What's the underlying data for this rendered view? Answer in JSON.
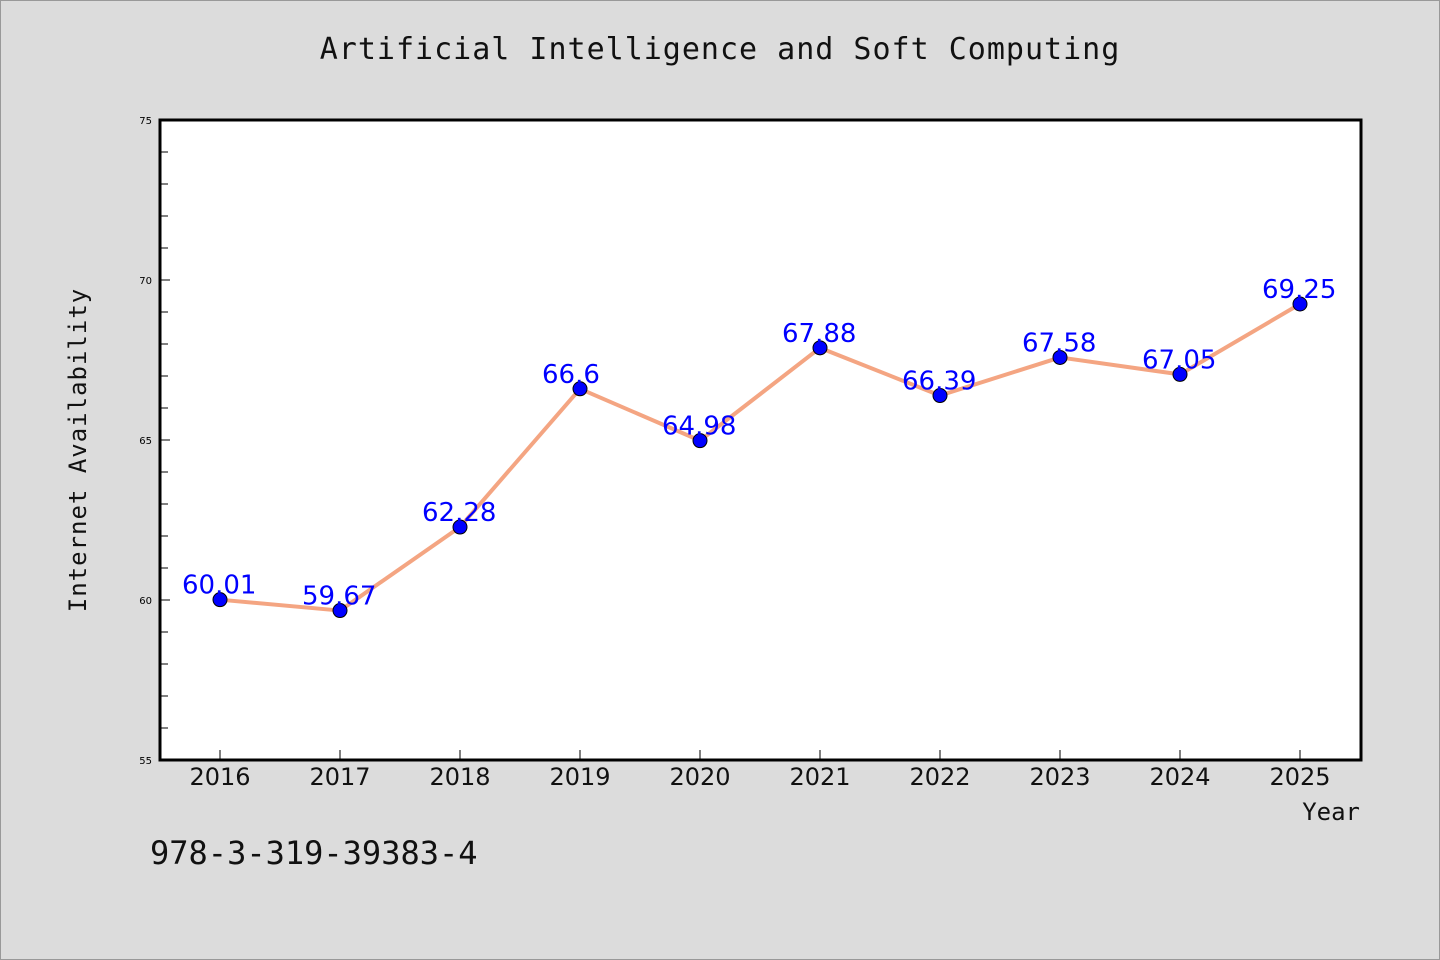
{
  "title": "Artificial Intelligence and Soft Computing",
  "isbn": "978-3-319-39383-4",
  "colors": {
    "background": "#dcdcdc",
    "plot_background": "#ffffff",
    "line": "#f4a582",
    "marker": "#0000ff",
    "label": "#0000ff"
  },
  "chart_data": {
    "type": "line",
    "title": "Artificial Intelligence and Soft Computing",
    "xlabel": "Year",
    "ylabel": "Internet Availability",
    "categories": [
      "2016",
      "2017",
      "2018",
      "2019",
      "2020",
      "2021",
      "2022",
      "2023",
      "2024",
      "2025"
    ],
    "series": [
      {
        "values": [
          60.01,
          59.67,
          62.28,
          66.6,
          64.98,
          67.88,
          66.39,
          67.58,
          67.05,
          69.25
        ],
        "labels": [
          "60.01",
          "59.67",
          "62.28",
          "66.6",
          "64.98",
          "67.88",
          "66.39",
          "67.58",
          "67.05",
          "69.25"
        ]
      }
    ],
    "ylim": [
      55,
      75
    ],
    "yticks": [
      "55",
      "60",
      "65",
      "70",
      "75"
    ],
    "grid": false,
    "legend": false
  }
}
